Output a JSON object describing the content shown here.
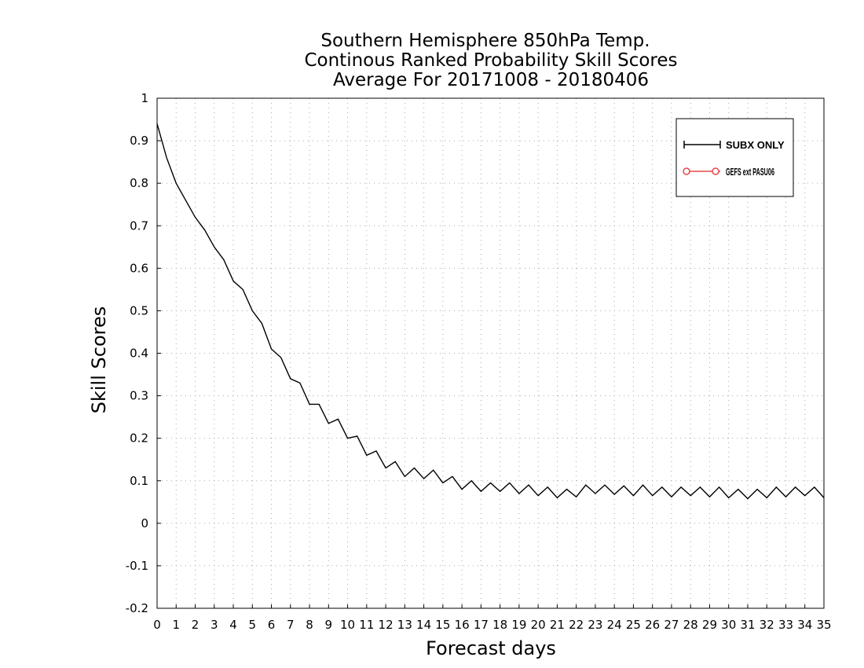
{
  "chart_data": {
    "type": "line",
    "title": [
      "Southern Hemisphere 850hPa Temp.",
      "Continous Ranked Probability Skill Scores",
      "Average For 20171008 - 20180406"
    ],
    "xlabel": "Forecast days",
    "ylabel": "Skill Scores",
    "xlim": [
      0,
      35
    ],
    "ylim": [
      -0.2,
      1
    ],
    "x_ticks": [
      "0",
      "1",
      "2",
      "3",
      "4",
      "5",
      "6",
      "7",
      "8",
      "9",
      "10",
      "11",
      "12",
      "13",
      "14",
      "15",
      "16",
      "17",
      "18",
      "19",
      "20",
      "21",
      "22",
      "23",
      "24",
      "25",
      "26",
      "27",
      "28",
      "29",
      "30",
      "31",
      "32",
      "33",
      "34",
      "35"
    ],
    "y_ticks": [
      "-0.2",
      "-0.1",
      "0",
      "0.1",
      "0.2",
      "0.3",
      "0.4",
      "0.5",
      "0.6",
      "0.7",
      "0.8",
      "0.9",
      "1"
    ],
    "grid": true,
    "legend_position": "top-right",
    "series": [
      {
        "name": "SUBX ONLY",
        "color": "#000000",
        "marker": "plus",
        "x": [
          0,
          0.5,
          1,
          1.5,
          2,
          2.5,
          3,
          3.5,
          4,
          4.5,
          5,
          5.5,
          6,
          6.5,
          7,
          7.5,
          8,
          8.5,
          9,
          9.5,
          10,
          10.5,
          11,
          11.5,
          12,
          12.5,
          13,
          13.5,
          14,
          14.5,
          15,
          15.5,
          16,
          16.5,
          17,
          17.5,
          18,
          18.5,
          19,
          19.5,
          20,
          20.5,
          21,
          21.5,
          22,
          22.5,
          23,
          23.5,
          24,
          24.5,
          25,
          25.5,
          26,
          26.5,
          27,
          27.5,
          28,
          28.5,
          29,
          29.5,
          30,
          30.5,
          31,
          31.5,
          32,
          32.5,
          33,
          33.5,
          34,
          34.5,
          35
        ],
        "y": [
          0.94,
          0.86,
          0.8,
          0.76,
          0.72,
          0.69,
          0.65,
          0.62,
          0.57,
          0.55,
          0.5,
          0.47,
          0.41,
          0.39,
          0.34,
          0.33,
          0.28,
          0.28,
          0.235,
          0.245,
          0.2,
          0.205,
          0.16,
          0.17,
          0.13,
          0.145,
          0.11,
          0.13,
          0.105,
          0.125,
          0.095,
          0.11,
          0.08,
          0.1,
          0.075,
          0.095,
          0.075,
          0.095,
          0.07,
          0.09,
          0.065,
          0.085,
          0.06,
          0.08,
          0.062,
          0.09,
          0.07,
          0.09,
          0.068,
          0.088,
          0.065,
          0.09,
          0.065,
          0.085,
          0.062,
          0.085,
          0.065,
          0.085,
          0.062,
          0.085,
          0.06,
          0.08,
          0.058,
          0.08,
          0.06,
          0.085,
          0.062,
          0.085,
          0.065,
          0.085,
          0.06
        ]
      },
      {
        "name": "GEFS ext PASU06",
        "color": "#e8484a",
        "marker": "circle",
        "x": [],
        "y": []
      }
    ]
  }
}
